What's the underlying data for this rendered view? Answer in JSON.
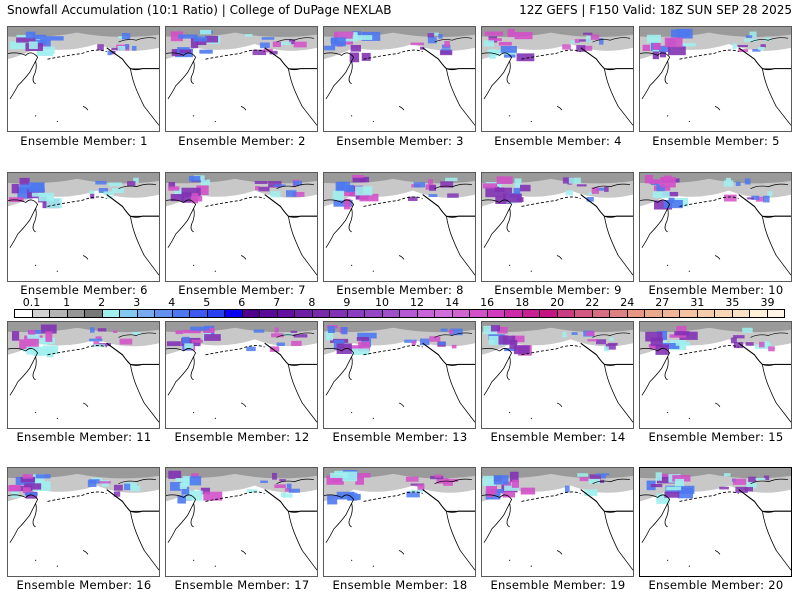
{
  "header": {
    "title_left": "Snowfall Accumulation (10:1 Ratio) | College of DuPage NEXLAB",
    "title_right": "12Z GEFS | F150 Valid: 18Z SUN SEP 28 2025"
  },
  "panels": [
    {
      "label": "Ensemble Member: 1",
      "selected": false
    },
    {
      "label": "Ensemble Member: 2",
      "selected": false
    },
    {
      "label": "Ensemble Member: 3",
      "selected": false
    },
    {
      "label": "Ensemble Member: 4",
      "selected": false
    },
    {
      "label": "Ensemble Member: 5",
      "selected": false
    },
    {
      "label": "Ensemble Member: 6",
      "selected": false
    },
    {
      "label": "Ensemble Member: 7",
      "selected": false
    },
    {
      "label": "Ensemble Member: 8",
      "selected": false
    },
    {
      "label": "Ensemble Member: 9",
      "selected": false
    },
    {
      "label": "Ensemble Member: 10",
      "selected": false
    },
    {
      "label": "Ensemble Member: 11",
      "selected": false
    },
    {
      "label": "Ensemble Member: 12",
      "selected": false
    },
    {
      "label": "Ensemble Member: 13",
      "selected": false
    },
    {
      "label": "Ensemble Member: 14",
      "selected": false
    },
    {
      "label": "Ensemble Member: 15",
      "selected": false
    },
    {
      "label": "Ensemble Member: 16",
      "selected": false
    },
    {
      "label": "Ensemble Member: 17",
      "selected": false
    },
    {
      "label": "Ensemble Member: 18",
      "selected": false
    },
    {
      "label": "Ensemble Member: 19",
      "selected": false
    },
    {
      "label": "Ensemble Member: 20",
      "selected": true
    }
  ],
  "colorbar": {
    "tick_labels": [
      "0.1",
      "1",
      "2",
      "3",
      "4",
      "5",
      "6",
      "7",
      "8",
      "9",
      "10",
      "12",
      "14",
      "16",
      "18",
      "20",
      "22",
      "24",
      "27",
      "31",
      "35",
      "39"
    ],
    "colors": [
      "#ffffff",
      "#d2d2d2",
      "#b4b4b4",
      "#969696",
      "#787878",
      "#a0f0f0",
      "#82c8f0",
      "#78aaf0",
      "#6490f0",
      "#4c78f0",
      "#3c5af0",
      "#2840f0",
      "#0a00f0",
      "#50008c",
      "#5a0a96",
      "#640fa0",
      "#6e1ea5",
      "#7828aa",
      "#8232b4",
      "#8c3cbe",
      "#9646c4",
      "#a050c8",
      "#b45ad2",
      "#c864d7",
      "#d26edc",
      "#d264d2",
      "#d250c8",
      "#d23cbe",
      "#cd28aa",
      "#c81e96",
      "#c31482",
      "#c83c82",
      "#d25a82",
      "#d76e82",
      "#dc8282",
      "#e69682",
      "#ebaa8c",
      "#f0b496",
      "#f5c3a0",
      "#f5cdaa",
      "#fad7b4",
      "#fae1c3",
      "#fff0d7",
      "#fff5e6"
    ]
  },
  "map": {
    "region": "North Pacific / Alaska / Western North America",
    "colors": {
      "coast": "#000000",
      "snow_light": "#c8c8c8",
      "snow_cyan": "#a0f0f0",
      "snow_blue": "#4c78f0",
      "snow_purple": "#8232b4",
      "snow_pink": "#d250c8"
    }
  }
}
